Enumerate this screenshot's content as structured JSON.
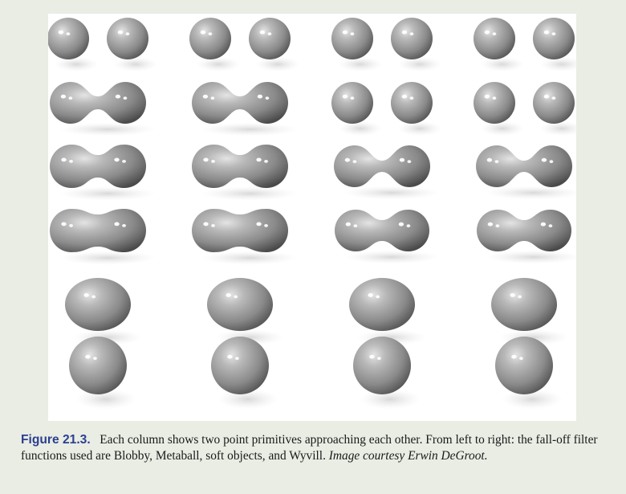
{
  "figure": {
    "label": "Figure 21.3.",
    "caption_text": "Each column shows two point primitives approaching each other. From left to right: the fall-off filter functions used are Blobby, Metaball, soft objects, and Wyvill.",
    "credit": "Image courtesy Erwin DeGroot."
  },
  "colors": {
    "page_background": "#e9ede4",
    "figure_background": "#ffffff",
    "label_color": "#2b3f8f",
    "blob_shade": "#8a8a8a"
  },
  "columns": [
    "Blobby",
    "Metaball",
    "soft objects",
    "Wyvill"
  ]
}
